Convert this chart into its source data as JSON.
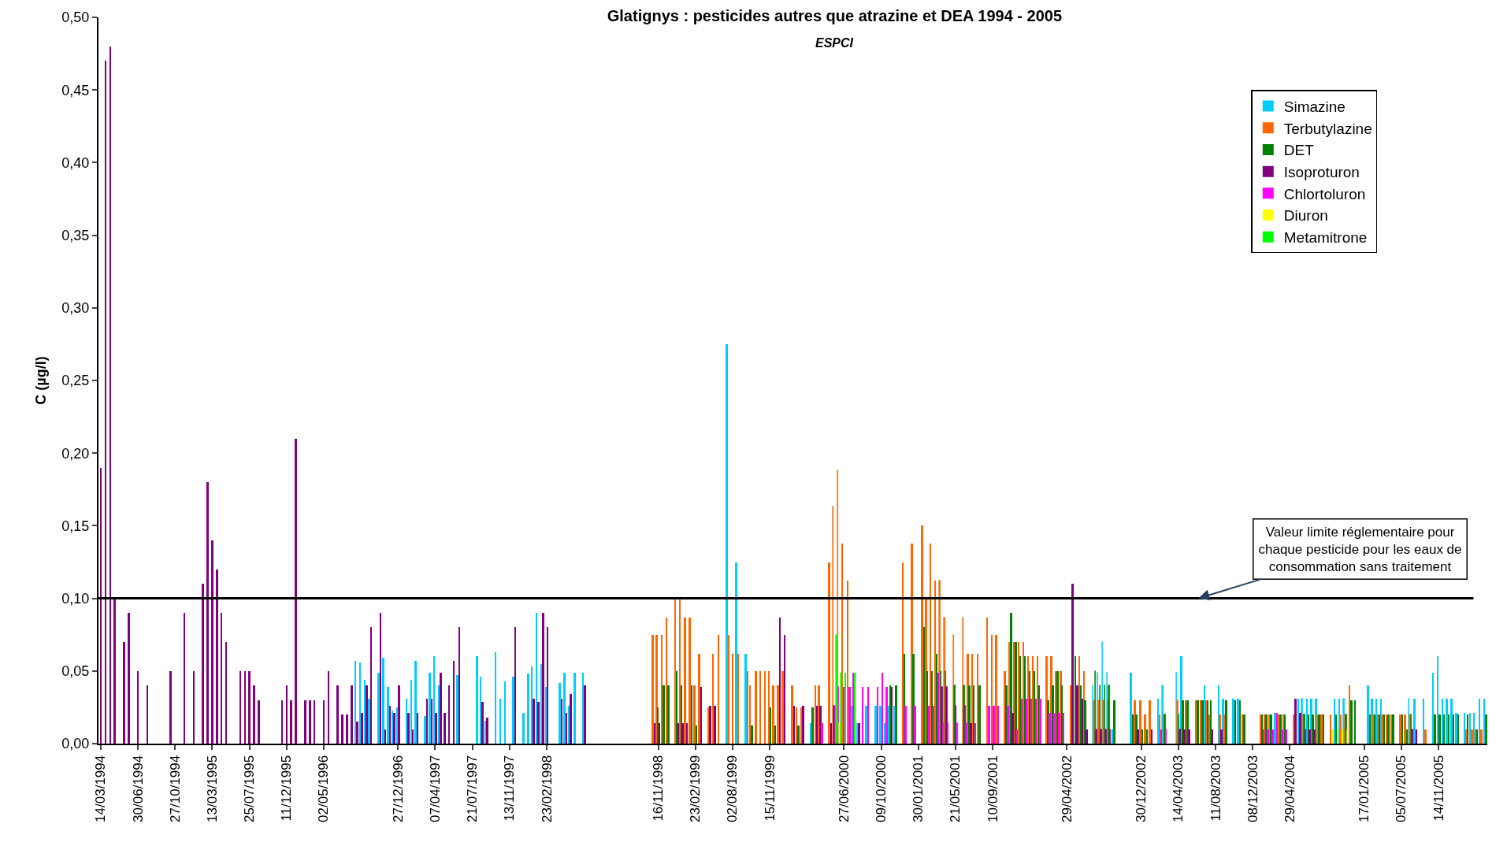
{
  "chart_data": {
    "type": "bar",
    "title": "Glatignys : pesticides autres que atrazine et DEA 1994 - 2005",
    "subtitle": "ESPCI",
    "ylabel": "C (µg/l)",
    "categories": [
      "14/03/1994",
      null,
      null,
      null,
      null,
      null,
      null,
      null,
      "30/06/1994",
      null,
      null,
      null,
      null,
      null,
      null,
      null,
      "27/10/1994",
      null,
      null,
      null,
      null,
      null,
      null,
      null,
      "13/03/1995",
      null,
      null,
      null,
      null,
      null,
      null,
      null,
      "25/07/1995",
      null,
      null,
      null,
      null,
      null,
      null,
      null,
      "11/12/1995",
      null,
      null,
      null,
      null,
      null,
      null,
      null,
      "02/05/1996",
      null,
      null,
      null,
      null,
      null,
      null,
      null,
      null,
      null,
      null,
      null,
      null,
      null,
      null,
      null,
      "27/12/1996",
      null,
      null,
      null,
      null,
      null,
      null,
      null,
      "07/04/1997",
      null,
      null,
      null,
      null,
      null,
      null,
      null,
      "21/07/1997",
      null,
      null,
      null,
      null,
      null,
      null,
      null,
      "13/11/1997",
      null,
      null,
      null,
      null,
      null,
      null,
      null,
      "23/02/1998",
      null,
      null,
      null,
      null,
      null,
      null,
      null,
      null,
      null,
      null,
      null,
      null,
      null,
      null,
      null,
      null,
      null,
      null,
      null,
      null,
      null,
      null,
      null,
      "16/11/1998",
      null,
      null,
      null,
      null,
      null,
      null,
      null,
      "23/02/1999",
      null,
      null,
      null,
      null,
      null,
      null,
      null,
      "02/08/1999",
      null,
      null,
      null,
      null,
      null,
      null,
      null,
      "15/11/1999",
      null,
      null,
      null,
      null,
      null,
      null,
      null,
      null,
      null,
      null,
      null,
      null,
      null,
      null,
      null,
      "27/06/2000",
      null,
      null,
      null,
      null,
      null,
      null,
      null,
      "09/10/2000",
      null,
      null,
      null,
      null,
      null,
      null,
      null,
      "30/01/2001",
      null,
      null,
      null,
      null,
      null,
      null,
      null,
      "21/05/2001",
      null,
      null,
      null,
      null,
      null,
      null,
      null,
      "10/09/2001",
      null,
      null,
      null,
      null,
      null,
      null,
      null,
      null,
      null,
      null,
      null,
      null,
      null,
      null,
      null,
      "29/04/2002",
      null,
      null,
      null,
      null,
      null,
      null,
      null,
      null,
      null,
      null,
      null,
      null,
      null,
      null,
      null,
      "30/12/2002",
      null,
      null,
      null,
      null,
      null,
      null,
      null,
      "14/04/2003",
      null,
      null,
      null,
      null,
      null,
      null,
      null,
      "11/08/2003",
      null,
      null,
      null,
      null,
      null,
      null,
      null,
      "08/12/2003",
      null,
      null,
      null,
      null,
      null,
      null,
      null,
      "29/04/2004",
      null,
      null,
      null,
      null,
      null,
      null,
      null,
      null,
      null,
      null,
      null,
      null,
      null,
      null,
      null,
      "17/01/2005",
      null,
      null,
      null,
      null,
      null,
      null,
      null,
      "05/07/2005",
      null,
      null,
      null,
      null,
      null,
      null,
      null,
      "14/11/2005",
      null,
      null,
      null,
      null,
      null,
      null,
      null,
      null,
      null,
      null
    ],
    "series": [
      {
        "name": "Simazine",
        "color": "#00ccff",
        "values": [
          null,
          null,
          null,
          null,
          null,
          null,
          null,
          null,
          null,
          null,
          null,
          null,
          null,
          null,
          null,
          null,
          null,
          null,
          null,
          null,
          null,
          null,
          null,
          null,
          null,
          null,
          null,
          null,
          null,
          null,
          null,
          null,
          null,
          null,
          null,
          null,
          null,
          null,
          null,
          null,
          null,
          null,
          null,
          null,
          null,
          null,
          null,
          null,
          null,
          null,
          null,
          null,
          null,
          null,
          null,
          0.057,
          0.056,
          0.044,
          0.031,
          null,
          0.049,
          0.059,
          0.039,
          0.023,
          0.025,
          null,
          0.031,
          0.044,
          0.057,
          null,
          0.019,
          0.049,
          0.06,
          0.04,
          null,
          null,
          null,
          0.047,
          null,
          null,
          null,
          0.06,
          0.046,
          0.016,
          null,
          0.063,
          0.031,
          0.043,
          null,
          0.046,
          null,
          0.021,
          0.048,
          0.053,
          0.09,
          0.055,
          0.039,
          null,
          null,
          0.042,
          0.049,
          0.026,
          0.049,
          null,
          0.049,
          null,
          null,
          null,
          null,
          null,
          null,
          null,
          null,
          null,
          null,
          null,
          null,
          null,
          null,
          null,
          null,
          null,
          null,
          null,
          null,
          null,
          null,
          null,
          null,
          null,
          null,
          null,
          null,
          null,
          null,
          0.275,
          null,
          0.125,
          null,
          0.062,
          null,
          null,
          null,
          null,
          null,
          null,
          null,
          null,
          null,
          null,
          null,
          null,
          null,
          0.014,
          null,
          null,
          null,
          null,
          null,
          null,
          null,
          null,
          0.026,
          0.014,
          null,
          0.026,
          null,
          0.026,
          0.026,
          0.014,
          0.026,
          0.026,
          null,
          null,
          null,
          null,
          null,
          null,
          null,
          null,
          null,
          null,
          null,
          null,
          null,
          null,
          null,
          null,
          null,
          null,
          null,
          null,
          null,
          null,
          null,
          null,
          null,
          null,
          null,
          null,
          null,
          null,
          null,
          null,
          null,
          null,
          null,
          null,
          null,
          null,
          null,
          null,
          null,
          null,
          0.04,
          0.049,
          0.07,
          0.049,
          0.01,
          null,
          null,
          null,
          0.049,
          null,
          null,
          null,
          null,
          null,
          0.031,
          0.04,
          null,
          null,
          0.049,
          0.06,
          null,
          null,
          null,
          null,
          0.04,
          null,
          null,
          0.04,
          0.031,
          null,
          0.031,
          0.031,
          null,
          null,
          null,
          null,
          null,
          null,
          null,
          0.021,
          null,
          null,
          null,
          null,
          0.031,
          0.031,
          0.031,
          0.031,
          0.031,
          null,
          null,
          null,
          0.031,
          0.031,
          0.031,
          null,
          null,
          null,
          null,
          0.04,
          0.031,
          0.031,
          0.031,
          null,
          null,
          null,
          null,
          null,
          0.031,
          0.031,
          null,
          0.031,
          null,
          0.049,
          0.06,
          0.031,
          0.031,
          0.031,
          0.021,
          null,
          0.021,
          0.021,
          0.021,
          0.031,
          0.031
        ]
      },
      {
        "name": "Terbutylazine",
        "color": "#ff6600",
        "values": [
          null,
          null,
          null,
          null,
          null,
          null,
          null,
          null,
          null,
          null,
          null,
          null,
          null,
          null,
          null,
          null,
          null,
          null,
          null,
          null,
          null,
          null,
          null,
          null,
          null,
          null,
          null,
          null,
          null,
          null,
          null,
          null,
          null,
          null,
          null,
          null,
          null,
          null,
          null,
          null,
          null,
          null,
          null,
          null,
          null,
          null,
          null,
          null,
          null,
          null,
          null,
          null,
          null,
          null,
          null,
          null,
          null,
          null,
          null,
          null,
          null,
          null,
          null,
          null,
          null,
          null,
          null,
          null,
          null,
          null,
          null,
          null,
          null,
          null,
          null,
          null,
          null,
          null,
          null,
          null,
          null,
          null,
          null,
          null,
          null,
          null,
          null,
          null,
          null,
          null,
          null,
          null,
          null,
          null,
          null,
          null,
          null,
          null,
          null,
          null,
          null,
          null,
          null,
          null,
          null,
          null,
          null,
          null,
          null,
          null,
          null,
          null,
          null,
          null,
          null,
          null,
          null,
          null,
          null,
          0.075,
          0.075,
          0.075,
          0.087,
          null,
          0.1,
          0.1,
          0.087,
          0.087,
          0.04,
          0.062,
          null,
          0.025,
          0.062,
          0.075,
          null,
          0.075,
          0.062,
          0.062,
          null,
          0.05,
          0.04,
          0.05,
          0.05,
          0.05,
          0.05,
          0.04,
          0.04,
          0.05,
          null,
          0.04,
          0.025,
          0.025,
          null,
          null,
          0.04,
          0.04,
          null,
          0.125,
          0.163,
          0.188,
          0.138,
          0.112,
          null,
          null,
          null,
          null,
          null,
          null,
          null,
          null,
          null,
          null,
          null,
          0.125,
          null,
          0.138,
          null,
          0.15,
          0.1,
          0.138,
          0.112,
          0.112,
          0.087,
          null,
          0.075,
          null,
          0.087,
          0.062,
          0.062,
          0.062,
          null,
          0.087,
          0.075,
          0.075,
          null,
          0.05,
          0.07,
          0.07,
          0.07,
          0.07,
          0.06,
          0.06,
          0.06,
          null,
          0.06,
          0.06,
          0.05,
          0.05,
          null,
          0.04,
          null,
          0.06,
          0.05,
          null,
          0.03,
          0.03,
          0.03,
          0.03,
          null,
          null,
          null,
          null,
          null,
          0.03,
          0.03,
          0.02,
          0.03,
          null,
          0.02,
          0.02,
          null,
          null,
          0.03,
          null,
          0.03,
          null,
          0.03,
          0.03,
          0.03,
          0.02,
          null,
          0.02,
          0.02,
          null,
          null,
          null,
          0.02,
          null,
          null,
          null,
          0.02,
          0.02,
          0.02,
          null,
          0.02,
          0.02,
          null,
          0.02,
          null,
          0.02,
          null,
          null,
          0.02,
          0.02,
          null,
          0.02,
          null,
          0.02,
          0.02,
          0.04,
          null,
          null,
          null,
          null,
          0.02,
          0.02,
          0.02,
          0.02,
          0.02,
          null,
          0.02,
          0.02,
          0.02,
          null,
          null,
          0.01,
          null,
          null,
          null,
          null,
          null,
          null,
          null,
          null,
          0.01,
          0.01,
          0.01,
          0.01,
          null
        ]
      },
      {
        "name": "DET",
        "color": "#008000",
        "values": [
          null,
          null,
          null,
          null,
          null,
          null,
          null,
          null,
          null,
          null,
          null,
          null,
          null,
          null,
          null,
          null,
          null,
          null,
          null,
          null,
          null,
          null,
          null,
          null,
          null,
          null,
          null,
          null,
          null,
          null,
          null,
          null,
          null,
          null,
          null,
          null,
          null,
          null,
          null,
          null,
          null,
          null,
          null,
          null,
          null,
          null,
          null,
          null,
          null,
          null,
          null,
          null,
          null,
          null,
          null,
          null,
          null,
          null,
          null,
          null,
          null,
          null,
          null,
          null,
          null,
          null,
          null,
          null,
          null,
          null,
          null,
          null,
          null,
          null,
          null,
          null,
          null,
          null,
          null,
          null,
          null,
          null,
          null,
          null,
          null,
          null,
          null,
          null,
          null,
          null,
          null,
          null,
          null,
          null,
          null,
          null,
          null,
          null,
          null,
          null,
          null,
          null,
          null,
          null,
          null,
          null,
          null,
          null,
          null,
          null,
          null,
          null,
          null,
          null,
          null,
          null,
          null,
          null,
          null,
          null,
          0.025,
          0.04,
          0.04,
          null,
          0.05,
          0.04,
          null,
          0.04,
          0.0125,
          null,
          null,
          null,
          null,
          null,
          null,
          null,
          null,
          null,
          null,
          null,
          0.0125,
          null,
          null,
          null,
          0.025,
          0.0125,
          null,
          null,
          null,
          null,
          0.0125,
          null,
          null,
          0.025,
          null,
          null,
          null,
          null,
          null,
          null,
          null,
          null,
          null,
          null,
          null,
          null,
          null,
          null,
          null,
          null,
          0.04,
          0.04,
          null,
          0.062,
          null,
          0.062,
          null,
          0.08,
          0.05,
          0.05,
          0.062,
          0.05,
          0.05,
          null,
          0.04,
          null,
          0.04,
          0.04,
          0.04,
          0.04,
          null,
          null,
          null,
          null,
          null,
          0.04,
          0.09,
          0.07,
          0.06,
          0.06,
          0.05,
          0.05,
          0.04,
          null,
          0.03,
          0.04,
          0.05,
          0.04,
          null,
          null,
          0.06,
          0.04,
          0.03,
          null,
          0.05,
          0.04,
          0.04,
          0.04,
          0.03,
          null,
          null,
          null,
          0.02,
          0.02,
          0.01,
          0.01,
          null,
          null,
          null,
          0.02,
          null,
          null,
          0.02,
          0.03,
          0.03,
          null,
          0.03,
          0.03,
          0.03,
          0.03,
          null,
          null,
          0.03,
          null,
          0.03,
          0.03,
          0.02,
          null,
          null,
          null,
          0.02,
          0.02,
          0.02,
          null,
          0.02,
          0.02,
          null,
          null,
          null,
          0.02,
          0.02,
          0.02,
          0.02,
          0.02,
          null,
          null,
          0.02,
          null,
          0.02,
          0.03,
          0.03,
          null,
          null,
          0.02,
          0.02,
          0.02,
          0.02,
          0.02,
          0.02,
          null,
          0.02,
          0.01,
          0.02,
          null,
          null,
          null,
          null,
          0.02,
          0.02,
          0.02,
          0.02,
          0.02,
          0.02,
          null,
          0.02,
          null,
          0.01,
          null,
          0.02
        ]
      },
      {
        "name": "Isoproturon",
        "color": "#800080",
        "values": [
          0.19,
          0.47,
          0.48,
          0.1,
          null,
          0.07,
          0.09,
          null,
          0.05,
          null,
          0.04,
          null,
          null,
          null,
          null,
          0.05,
          null,
          null,
          0.09,
          null,
          0.05,
          null,
          0.11,
          0.18,
          0.14,
          0.12,
          0.09,
          0.07,
          null,
          null,
          0.05,
          0.05,
          0.05,
          0.04,
          0.03,
          null,
          null,
          null,
          null,
          0.03,
          0.04,
          0.03,
          0.21,
          null,
          0.03,
          0.03,
          0.03,
          null,
          0.03,
          0.05,
          null,
          0.04,
          0.02,
          0.02,
          0.04,
          0.015,
          0.021,
          0.04,
          0.08,
          null,
          0.09,
          0.01,
          0.026,
          0.021,
          0.04,
          null,
          0.021,
          0.01,
          0.021,
          null,
          0.031,
          0.031,
          0.021,
          0.049,
          0.021,
          0.04,
          0.057,
          0.08,
          null,
          null,
          null,
          null,
          0.029,
          0.018,
          null,
          null,
          null,
          null,
          null,
          0.08,
          null,
          null,
          null,
          0.031,
          0.029,
          0.09,
          0.08,
          null,
          null,
          0.031,
          0.021,
          0.034,
          null,
          null,
          0.04,
          null,
          null,
          null,
          null,
          null,
          null,
          null,
          null,
          null,
          null,
          null,
          null,
          null,
          null,
          0.014,
          0.014,
          null,
          null,
          null,
          0.014,
          0.014,
          0.014,
          null,
          null,
          0.039,
          null,
          0.026,
          0.026,
          null,
          null,
          null,
          null,
          null,
          null,
          null,
          null,
          null,
          null,
          null,
          null,
          null,
          0.087,
          0.075,
          null,
          0.026,
          null,
          0.026,
          null,
          null,
          0.026,
          0.026,
          null,
          0.014,
          0.026,
          null,
          null,
          null,
          null,
          0.014,
          null,
          null,
          null,
          null,
          null,
          null,
          0.039,
          null,
          null,
          null,
          null,
          null,
          null,
          null,
          null,
          null,
          null,
          0.039,
          0.039,
          null,
          0.026,
          null,
          0.026,
          0.014,
          null,
          null,
          null,
          null,
          null,
          null,
          null,
          null,
          0.021,
          null,
          null,
          null,
          null,
          null,
          null,
          null,
          null,
          null,
          null,
          null,
          null,
          0.11,
          0.04,
          0.031,
          0.01,
          null,
          0.01,
          0.01,
          0.01,
          0.01,
          null,
          null,
          null,
          null,
          null,
          0.01,
          null,
          null,
          0.01,
          null,
          null,
          null,
          null,
          null,
          0.01,
          0.01,
          0.01,
          null,
          null,
          null,
          null,
          0.01,
          null,
          0.01,
          null,
          null,
          null,
          null,
          null,
          null,
          null,
          null,
          null,
          null,
          null,
          null,
          null,
          null,
          null,
          0.031,
          0.021,
          0.01,
          0.01,
          0.01,
          null,
          null,
          null,
          null,
          null,
          null,
          null,
          null,
          null,
          null,
          null,
          null,
          null,
          null,
          null,
          null,
          null,
          null,
          null,
          null,
          0.01,
          0.01,
          null,
          null,
          null,
          null,
          null,
          null,
          null,
          null,
          null,
          null,
          null,
          null,
          null,
          null,
          null
        ]
      },
      {
        "name": "Chlortoluron",
        "color": "#ff00ff",
        "values": [
          null,
          null,
          null,
          null,
          null,
          null,
          null,
          null,
          null,
          null,
          null,
          null,
          null,
          null,
          null,
          null,
          null,
          null,
          null,
          null,
          null,
          null,
          null,
          null,
          null,
          null,
          null,
          null,
          null,
          null,
          null,
          null,
          null,
          null,
          null,
          null,
          null,
          null,
          null,
          null,
          null,
          null,
          null,
          null,
          null,
          null,
          null,
          null,
          null,
          null,
          null,
          null,
          null,
          null,
          null,
          null,
          null,
          null,
          null,
          null,
          null,
          null,
          null,
          null,
          null,
          null,
          null,
          null,
          null,
          null,
          null,
          null,
          null,
          null,
          null,
          null,
          null,
          null,
          null,
          null,
          null,
          null,
          null,
          null,
          null,
          null,
          null,
          null,
          null,
          null,
          null,
          null,
          null,
          null,
          null,
          null,
          null,
          null,
          null,
          null,
          null,
          null,
          null,
          null,
          null,
          null,
          null,
          null,
          null,
          null,
          null,
          null,
          null,
          null,
          null,
          null,
          null,
          null,
          null,
          null,
          null,
          null,
          null,
          null,
          null,
          null,
          null,
          null,
          null,
          null,
          null,
          null,
          null,
          null,
          null,
          null,
          null,
          null,
          null,
          null,
          null,
          null,
          null,
          null,
          null,
          null,
          null,
          null,
          null,
          null,
          null,
          null,
          null,
          null,
          null,
          0.014,
          null,
          null,
          0.026,
          0.039,
          0.039,
          0.039,
          0.049,
          null,
          0.039,
          0.039,
          null,
          0.039,
          0.049,
          0.039,
          null,
          null,
          null,
          0.026,
          null,
          0.026,
          null,
          null,
          0.026,
          0.026,
          0.049,
          0.014,
          0.014,
          null,
          0.014,
          null,
          0.014,
          null,
          0.014,
          null,
          null,
          0.026,
          0.026,
          0.026,
          null,
          0.026,
          null,
          0.01,
          0.031,
          0.031,
          0.031,
          0.031,
          0.031,
          null,
          0.021,
          0.021,
          0.021,
          0.021,
          null,
          null,
          null,
          null,
          null,
          null,
          null,
          null,
          null,
          null,
          null,
          null,
          null,
          null,
          null,
          null,
          null,
          null,
          null,
          null,
          0.01,
          0.01,
          null,
          null,
          null,
          null,
          null,
          null,
          null,
          null,
          null,
          null,
          null,
          null,
          null,
          null,
          null,
          null,
          null,
          null,
          null,
          null,
          0.01,
          0.01,
          0.01,
          0.021,
          0.01,
          0.01,
          null,
          null,
          null,
          null,
          null,
          null,
          null,
          null,
          null,
          null,
          null,
          null,
          null,
          null,
          null,
          null,
          null,
          null,
          null,
          null,
          null,
          null,
          null,
          null,
          null,
          null,
          null,
          null,
          null,
          null,
          null,
          null,
          null,
          null,
          null,
          null,
          null,
          null,
          null,
          null,
          null,
          null,
          null
        ]
      },
      {
        "name": "Diuron",
        "color": "#ffff00",
        "values": [
          null,
          null,
          null,
          null,
          null,
          null,
          null,
          null,
          null,
          null,
          null,
          null,
          null,
          null,
          null,
          null,
          null,
          null,
          null,
          null,
          null,
          null,
          null,
          null,
          null,
          null,
          null,
          null,
          null,
          null,
          null,
          null,
          null,
          null,
          null,
          null,
          null,
          null,
          null,
          null,
          null,
          null,
          null,
          null,
          null,
          null,
          null,
          null,
          null,
          null,
          null,
          null,
          null,
          null,
          null,
          null,
          null,
          null,
          null,
          null,
          null,
          null,
          null,
          null,
          null,
          null,
          null,
          null,
          null,
          null,
          null,
          null,
          null,
          null,
          null,
          null,
          null,
          null,
          null,
          null,
          null,
          null,
          null,
          null,
          null,
          null,
          null,
          null,
          null,
          null,
          null,
          null,
          null,
          null,
          null,
          null,
          null,
          null,
          null,
          null,
          null,
          null,
          null,
          null,
          null,
          null,
          null,
          null,
          null,
          null,
          null,
          null,
          null,
          null,
          null,
          null,
          null,
          null,
          null,
          null,
          null,
          null,
          null,
          null,
          null,
          null,
          null,
          null,
          null,
          null,
          null,
          null,
          null,
          null,
          null,
          null,
          null,
          null,
          null,
          null,
          null,
          null,
          null,
          null,
          null,
          null,
          null,
          null,
          null,
          null,
          null,
          null,
          null,
          null,
          null,
          null,
          null,
          null,
          null,
          0.014,
          null,
          null,
          null,
          null,
          null,
          null,
          null,
          null,
          null,
          null,
          null,
          null,
          null,
          null,
          null,
          null,
          null,
          null,
          null,
          null,
          null,
          null,
          null,
          null,
          null,
          null,
          null,
          null,
          null,
          null,
          null,
          null,
          null,
          null,
          null,
          null,
          null,
          null,
          null,
          null,
          null,
          null,
          null,
          null,
          null,
          null,
          null,
          null,
          null,
          null,
          null,
          null,
          null,
          null,
          null,
          null,
          null,
          null,
          null,
          null,
          null,
          null,
          null,
          null,
          null,
          null,
          null,
          null,
          null,
          null,
          null,
          null,
          null,
          null,
          null,
          null,
          null,
          null,
          null,
          null,
          null,
          null,
          null,
          null,
          null,
          null,
          null,
          null,
          null,
          null,
          null,
          null,
          null,
          null,
          null,
          null,
          null,
          null,
          null,
          null,
          null,
          null,
          null,
          null,
          null,
          0.01,
          0.01,
          0.01,
          0.01,
          null,
          null,
          null,
          null,
          null,
          null,
          null,
          null,
          null,
          null,
          null,
          null,
          null,
          null,
          null,
          null,
          null,
          null,
          null,
          null,
          null,
          null,
          null,
          null,
          null,
          null,
          null,
          null,
          null,
          null
        ]
      },
      {
        "name": "Metamitrone",
        "color": "#00ff00",
        "values": [
          null,
          null,
          null,
          null,
          null,
          null,
          null,
          null,
          null,
          null,
          null,
          null,
          null,
          null,
          null,
          null,
          null,
          null,
          null,
          null,
          null,
          null,
          null,
          null,
          null,
          null,
          null,
          null,
          null,
          null,
          null,
          null,
          null,
          null,
          null,
          null,
          null,
          null,
          null,
          null,
          null,
          null,
          null,
          null,
          null,
          null,
          null,
          null,
          null,
          null,
          null,
          null,
          null,
          null,
          null,
          null,
          null,
          null,
          null,
          null,
          null,
          null,
          null,
          null,
          null,
          null,
          null,
          null,
          null,
          null,
          null,
          null,
          null,
          null,
          null,
          null,
          null,
          null,
          null,
          null,
          null,
          null,
          null,
          null,
          null,
          null,
          null,
          null,
          null,
          null,
          null,
          null,
          null,
          null,
          null,
          null,
          null,
          null,
          null,
          null,
          null,
          null,
          null,
          null,
          null,
          null,
          null,
          null,
          null,
          null,
          null,
          null,
          null,
          null,
          null,
          null,
          null,
          null,
          null,
          null,
          null,
          null,
          null,
          null,
          null,
          null,
          null,
          null,
          null,
          null,
          null,
          null,
          null,
          null,
          null,
          null,
          null,
          null,
          null,
          null,
          null,
          null,
          null,
          null,
          null,
          null,
          null,
          null,
          null,
          null,
          null,
          null,
          null,
          null,
          null,
          null,
          null,
          null,
          0.075,
          0.049,
          0.049,
          null,
          0.049,
          null,
          null,
          null,
          null,
          null,
          null,
          null,
          null,
          null,
          null,
          null,
          null,
          null,
          null,
          null,
          null,
          null,
          null,
          null,
          null,
          null,
          null,
          null,
          null,
          null,
          null,
          null,
          null,
          null,
          null,
          null,
          null,
          null,
          null,
          null,
          null,
          null,
          null,
          null,
          null,
          null,
          null,
          null,
          null,
          null,
          null,
          null,
          null,
          null,
          null,
          null,
          null,
          null,
          null,
          null,
          null,
          null,
          null,
          null,
          null,
          null,
          null,
          null,
          null,
          null,
          null,
          null,
          null,
          null,
          null,
          null,
          null,
          null,
          null,
          null,
          null,
          null,
          null,
          null,
          null,
          null,
          null,
          null,
          null,
          null,
          null,
          null,
          null,
          null,
          null,
          null,
          null,
          null,
          null,
          null,
          null,
          null,
          null,
          null,
          null,
          null,
          null,
          null,
          null,
          null,
          null,
          null,
          null,
          null,
          null,
          null,
          null,
          null,
          null,
          null,
          null,
          null,
          null,
          null,
          null,
          null,
          null,
          null,
          null,
          null,
          null,
          null,
          null,
          null,
          null,
          null,
          null,
          null,
          null,
          null,
          null
        ]
      }
    ],
    "ylim": [
      0,
      0.5
    ],
    "yticks": [
      {
        "value": 0,
        "label": "0,00"
      },
      {
        "value": 0.05,
        "label": "0,05"
      },
      {
        "value": 0.1,
        "label": "0,10"
      },
      {
        "value": 0.15,
        "label": "0,15"
      },
      {
        "value": 0.2,
        "label": "0,20"
      },
      {
        "value": 0.25,
        "label": "0,25"
      },
      {
        "value": 0.3,
        "label": "0,30"
      },
      {
        "value": 0.35,
        "label": "0,35"
      },
      {
        "value": 0.4,
        "label": "0,40"
      },
      {
        "value": 0.45,
        "label": "0,45"
      },
      {
        "value": 0.5,
        "label": "0,50"
      }
    ],
    "ref_lines": [
      {
        "axis": "y",
        "value": 0.1,
        "color": "#000000"
      }
    ],
    "annotations": [
      {
        "text": "Valeur limite réglementaire pour chaque pesticide pour les eaux de consommation sans traitement",
        "y": 0.1
      }
    ],
    "legend": "top right"
  }
}
